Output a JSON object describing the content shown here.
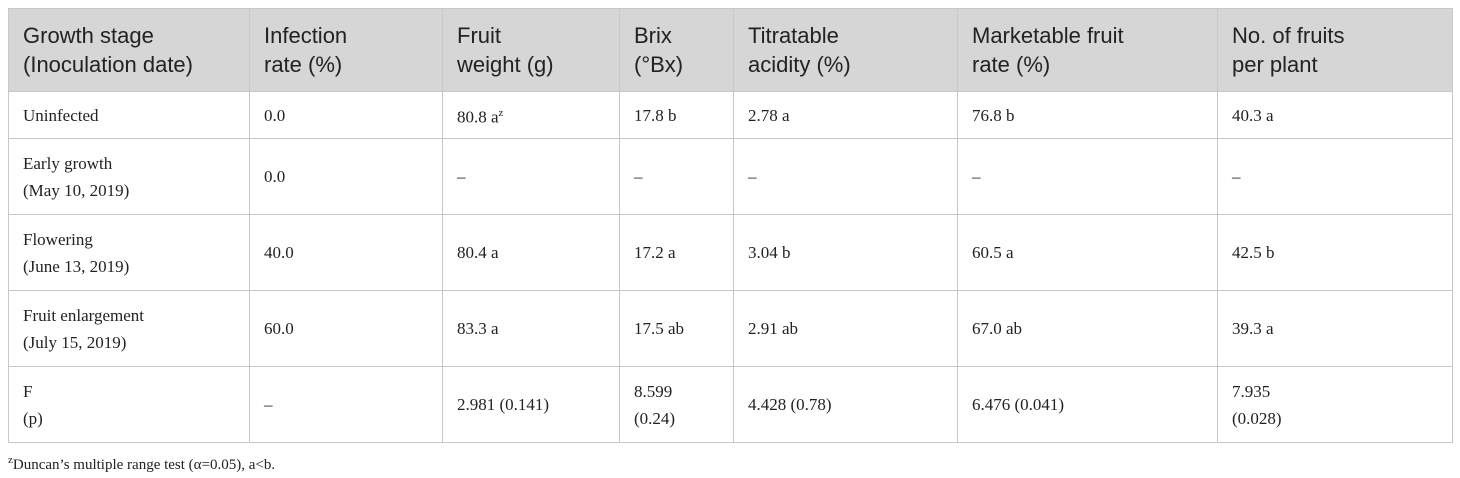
{
  "table": {
    "header": [
      [
        "Growth stage",
        "(Inoculation date)"
      ],
      [
        "Infection",
        "rate (%)"
      ],
      [
        "Fruit",
        "weight (g)"
      ],
      [
        "Brix",
        "(°Bx)"
      ],
      [
        "Titratable",
        "acidity (%)"
      ],
      [
        "Marketable fruit",
        "rate (%)"
      ],
      [
        "No. of fruits",
        "per plant"
      ]
    ],
    "rows": [
      [
        [
          "Uninfected"
        ],
        [
          "0.0"
        ],
        [
          {
            "text": "80.8 a",
            "sup": "z"
          }
        ],
        [
          "17.8 b"
        ],
        [
          "2.78 a"
        ],
        [
          "76.8 b"
        ],
        [
          "40.3 a"
        ]
      ],
      [
        [
          "Early growth",
          "(May 10, 2019)"
        ],
        [
          "0.0"
        ],
        [
          "–"
        ],
        [
          "–"
        ],
        [
          "–"
        ],
        [
          "–"
        ],
        [
          "–"
        ]
      ],
      [
        [
          "Flowering",
          "(June 13, 2019)"
        ],
        [
          "40.0"
        ],
        [
          "80.4 a"
        ],
        [
          "17.2 a"
        ],
        [
          "3.04 b"
        ],
        [
          "60.5 a"
        ],
        [
          "42.5 b"
        ]
      ],
      [
        [
          "Fruit enlargement",
          "(July 15, 2019)"
        ],
        [
          "60.0"
        ],
        [
          "83.3 a"
        ],
        [
          "17.5 ab"
        ],
        [
          "2.91 ab"
        ],
        [
          "67.0 ab"
        ],
        [
          "39.3 a"
        ]
      ],
      [
        [
          "F",
          "(p)"
        ],
        [
          "–"
        ],
        [
          "2.981 (0.141)"
        ],
        [
          "8.599",
          "(0.24)"
        ],
        [
          "4.428 (0.78)"
        ],
        [
          "6.476 (0.041)"
        ],
        [
          "7.935",
          "(0.028)"
        ]
      ]
    ]
  },
  "footnote": {
    "sup": "z",
    "text": "Duncan’s multiple range test (α=0.05), a<b."
  }
}
